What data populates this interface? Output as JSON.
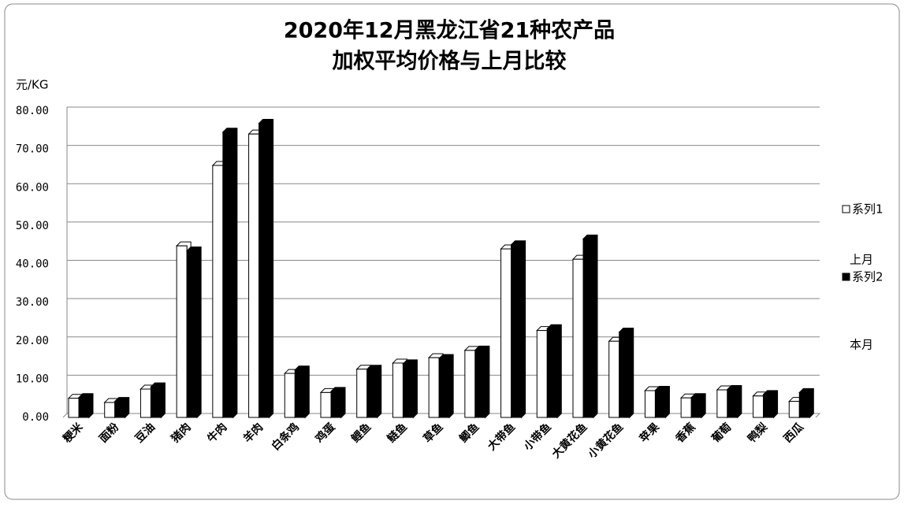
{
  "chart_data": {
    "type": "bar3d",
    "title": [
      "2020年12月黑龙江省21种农产品",
      "加权平均价格与上月比较"
    ],
    "y_label": "元/KG",
    "categories": [
      "粳米",
      "面粉",
      "豆油",
      "猪肉",
      "牛肉",
      "羊肉",
      "白条鸡",
      "鸡蛋",
      "鲤鱼",
      "鲢鱼",
      "草鱼",
      "鲫鱼",
      "大带鱼",
      "小带鱼",
      "大黄花鱼",
      "小黄花鱼",
      "苹果",
      "香蕉",
      "葡萄",
      "鸭梨",
      "西瓜"
    ],
    "series": [
      {
        "name": "系列1",
        "color": "#ffffff",
        "values": [
          5.0,
          3.9,
          7.4,
          44.8,
          65.8,
          74.0,
          11.5,
          6.5,
          12.6,
          14.2,
          15.6,
          17.5,
          44.0,
          22.7,
          41.3,
          19.9,
          7.0,
          5.1,
          7.2,
          5.6,
          4.2
        ]
      },
      {
        "name": "系列2",
        "color": "#000000",
        "values": [
          5.2,
          4.2,
          8.0,
          43.5,
          74.5,
          76.8,
          12.4,
          6.8,
          12.6,
          14.0,
          15.4,
          17.6,
          45.1,
          23.2,
          46.6,
          22.3,
          7.1,
          5.2,
          7.3,
          6.0,
          6.5
        ]
      }
    ],
    "annotations": [
      "上月",
      "本月"
    ],
    "ylim": [
      0,
      80
    ],
    "yticks": [
      {
        "value": 0,
        "label": "0.00"
      },
      {
        "value": 10,
        "label": "10.00"
      },
      {
        "value": 20,
        "label": "20.00"
      },
      {
        "value": 30,
        "label": "30.00"
      },
      {
        "value": 40,
        "label": "40.00"
      },
      {
        "value": 50,
        "label": "50.00"
      },
      {
        "value": 60,
        "label": "60.00"
      },
      {
        "value": 70,
        "label": "70.00"
      },
      {
        "value": 80,
        "label": "80.00"
      }
    ],
    "grid": true
  }
}
